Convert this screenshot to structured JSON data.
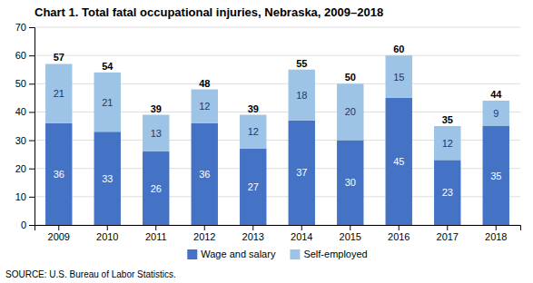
{
  "chart_data": {
    "type": "bar",
    "stacked": true,
    "data_labels": true,
    "grid": true,
    "legend": "bottom",
    "title": "Chart 1. Total fatal occupational injuries, Nebraska, 2009–2018",
    "categories": [
      "2009",
      "2010",
      "2011",
      "2012",
      "2013",
      "2014",
      "2015",
      "2016",
      "2017",
      "2018"
    ],
    "series": [
      {
        "name": "Wage and salary",
        "color": "#4472C4",
        "values": [
          36,
          33,
          26,
          36,
          27,
          37,
          30,
          45,
          23,
          35
        ]
      },
      {
        "name": "Self-employed",
        "color": "#9DC3E6",
        "values": [
          21,
          21,
          13,
          12,
          12,
          18,
          20,
          15,
          12,
          9
        ]
      }
    ],
    "totals": [
      57,
      54,
      39,
      48,
      39,
      55,
      50,
      60,
      35,
      44
    ],
    "ylim": [
      0,
      70
    ],
    "yticks": [
      0,
      10,
      20,
      30,
      40,
      50,
      60,
      70
    ],
    "source": "SOURCE: U.S. Bureau of Labor Statistics."
  }
}
